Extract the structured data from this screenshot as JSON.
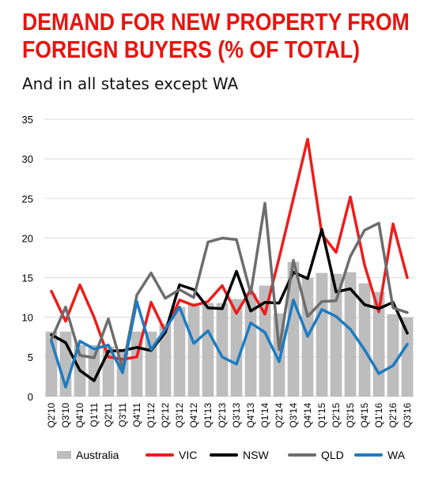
{
  "chart_data": {
    "type": "bar+line",
    "title": "DEMAND FOR NEW PROPERTY FROM FOREIGN BUYERS (% OF TOTAL)",
    "subtitle": "And in all states except WA",
    "categories": [
      "Q2'10",
      "Q3'10",
      "Q4'10",
      "Q1'11",
      "Q2'11",
      "Q3'11",
      "Q4'11",
      "Q1'12",
      "Q2'12",
      "Q3'12",
      "Q4'12",
      "Q1'13",
      "Q2'13",
      "Q3'13",
      "Q4'13",
      "Q1'14",
      "Q2'14",
      "Q3'14",
      "Q4'14",
      "Q1'15",
      "Q2'15",
      "Q3'15",
      "Q4'15",
      "Q1'16",
      "Q2'16",
      "Q3'16"
    ],
    "ylim": [
      0,
      35
    ],
    "yticks": [
      0,
      5,
      10,
      15,
      20,
      25,
      30,
      35
    ],
    "grid": true,
    "legend_placement": "bottom",
    "bar_series": {
      "name": "Australia",
      "color": "#bdbdbd",
      "values": [
        8.2,
        8.2,
        6.5,
        6.5,
        6.3,
        5.7,
        8.2,
        8.2,
        9.2,
        11.3,
        11.8,
        11.8,
        11.8,
        12.3,
        13.0,
        14.0,
        10.5,
        17.0,
        15.0,
        15.6,
        15.5,
        15.7,
        14.3,
        13.2,
        10.4,
        10.0
      ]
    },
    "series": [
      {
        "name": "VIC",
        "color": "#ee1c1c",
        "values": [
          13.3,
          9.5,
          14.1,
          10.0,
          5.0,
          4.7,
          5.0,
          11.9,
          8.2,
          12.2,
          11.5,
          12.0,
          14.0,
          10.5,
          13.5,
          10.4,
          17.5,
          25.0,
          32.5,
          20.5,
          18.2,
          25.2,
          16.6,
          10.7,
          21.8,
          15.0
        ]
      },
      {
        "name": "NSW",
        "color": "#000000",
        "values": [
          7.8,
          6.8,
          3.3,
          2.0,
          5.7,
          5.8,
          6.2,
          5.8,
          8.1,
          14.1,
          13.5,
          11.2,
          11.1,
          15.8,
          10.8,
          11.9,
          11.8,
          15.7,
          14.9,
          21.1,
          13.2,
          13.6,
          11.6,
          11.1,
          11.9,
          8.0
        ]
      },
      {
        "name": "QLD",
        "color": "#6d6d6d",
        "values": [
          7.2,
          11.3,
          5.2,
          4.9,
          9.8,
          3.5,
          12.8,
          15.6,
          12.4,
          13.5,
          12.5,
          19.5,
          20.0,
          19.8,
          13.0,
          24.4,
          5.9,
          17.2,
          10.1,
          12.0,
          12.1,
          17.7,
          21.0,
          21.9,
          11.2,
          10.6
        ]
      },
      {
        "name": "WA",
        "color": "#1d7bc1",
        "values": [
          7.0,
          1.2,
          7.0,
          6.0,
          6.5,
          3.0,
          12.0,
          5.9,
          8.5,
          11.3,
          6.7,
          8.3,
          5.0,
          4.1,
          9.3,
          8.1,
          4.4,
          12.2,
          7.6,
          11.0,
          10.1,
          8.5,
          5.9,
          2.9,
          3.9,
          6.6
        ]
      }
    ]
  }
}
